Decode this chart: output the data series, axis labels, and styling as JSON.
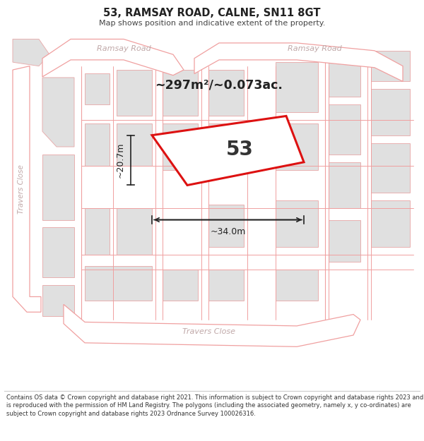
{
  "title": "53, RAMSAY ROAD, CALNE, SN11 8GT",
  "subtitle": "Map shows position and indicative extent of the property.",
  "footer": "Contains OS data © Crown copyright and database right 2021. This information is subject to Crown copyright and database rights 2023 and is reproduced with the permission of HM Land Registry. The polygons (including the associated geometry, namely x, y co-ordinates) are subject to Crown copyright and database rights 2023 Ordnance Survey 100026316.",
  "area_text": "~297m²/~0.073ac.",
  "property_number": "53",
  "dim_width": "~34.0m",
  "dim_height": "~20.7m",
  "map_bg": "#f7f7f7",
  "highlight_color": "#dd1111",
  "road_stroke": "#f0a0a0",
  "road_fill": "#ffffff",
  "building_fill": "#e0e0e0",
  "building_stroke": "#e8b0b0",
  "road_label_color": "#c0a8a8",
  "dim_color": "#222222",
  "text_dark": "#222222"
}
